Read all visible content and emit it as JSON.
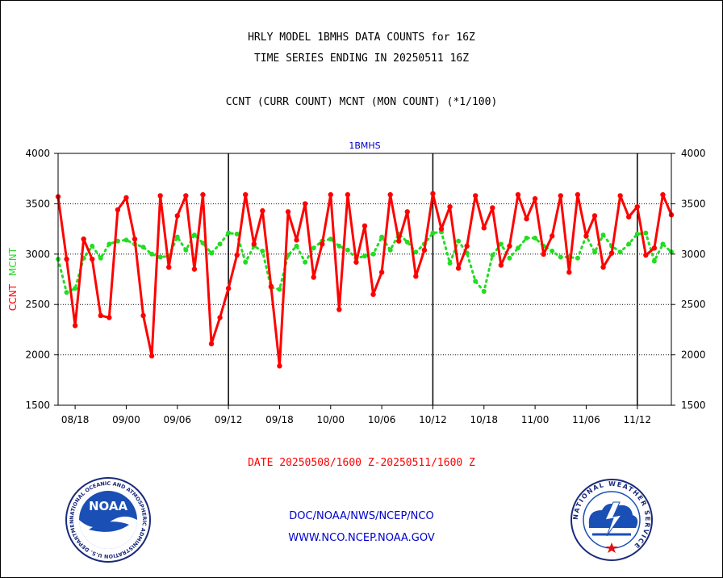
{
  "header": {
    "title_line1": "HRLY MODEL 1BMHS DATA COUNTS for 16Z",
    "title_line2": "TIME SERIES ENDING IN 20250511 16Z",
    "subtitle": "CCNT (CURR COUNT) MCNT (MON COUNT) (*1/100)"
  },
  "footer": {
    "date_range": "DATE 20250508/1600 Z-20250511/1600 Z",
    "org": "DOC/NOAA/NWS/NCEP/NCO",
    "url": "WWW.NCO.NCEP.NOAA.GOV"
  },
  "logos": {
    "left_name": "NOAA",
    "left_ring": "NATIONAL OCEANIC AND ATMOSPHERIC ADMINISTRATION  U.S. DEPARTMENT OF COMMERCE",
    "right_ring": "NATIONAL WEATHER SERVICE"
  },
  "colors": {
    "ccnt": "#ff0000",
    "mcnt": "#22dd22",
    "title_panel": "#0000cc",
    "ylabel_ccnt": "#ff0000",
    "ylabel_mcnt": "#22dd22"
  },
  "chart_data": {
    "type": "line",
    "panel_title": "1BMHS",
    "ylabel_parts": [
      "CCNT",
      "MCNT"
    ],
    "ylim": [
      1500,
      4000
    ],
    "yticks": [
      1500,
      2000,
      2500,
      3000,
      3500,
      4000
    ],
    "ytick_labels": [
      "1500",
      "2000",
      "2500",
      "3000",
      "3500",
      "4000"
    ],
    "grid": "horizontal dotted",
    "xtick_labels": [
      "08/18",
      "09/00",
      "09/06",
      "09/12",
      "09/18",
      "10/00",
      "10/06",
      "10/12",
      "10/18",
      "11/00",
      "11/06",
      "11/12"
    ],
    "xtick_index": [
      2,
      8,
      14,
      20,
      26,
      32,
      38,
      44,
      50,
      56,
      62,
      68
    ],
    "day_boundaries_index": [
      20,
      44,
      68
    ],
    "n_points": 73,
    "series": [
      {
        "name": "CCNT",
        "color": "#ff0000",
        "values": [
          3570,
          2950,
          2290,
          3150,
          2950,
          2390,
          2370,
          3440,
          3560,
          3150,
          2390,
          1990,
          3580,
          2870,
          3380,
          3580,
          2850,
          3590,
          2110,
          2370,
          2660,
          2990,
          3590,
          3100,
          3430,
          2680,
          1890,
          3420,
          3140,
          3500,
          2770,
          3100,
          3590,
          2450,
          3590,
          2920,
          3280,
          2600,
          2820,
          3590,
          3130,
          3420,
          2780,
          3040,
          3600,
          3250,
          3470,
          2860,
          3080,
          3580,
          3260,
          3460,
          2890,
          3080,
          3590,
          3350,
          3550,
          3000,
          3180,
          3580,
          2820,
          3590,
          3180,
          3380,
          2870,
          3010,
          3580,
          3370,
          3470,
          2990,
          3060,
          3590,
          3390
        ]
      },
      {
        "name": "MCNT",
        "color": "#22dd22",
        "values": [
          2950,
          2620,
          2660,
          2960,
          3080,
          2960,
          3100,
          3130,
          3140,
          3100,
          3070,
          3000,
          2970,
          2980,
          3170,
          3040,
          3190,
          3110,
          3010,
          3100,
          3210,
          3200,
          2920,
          3080,
          3030,
          2670,
          2650,
          2990,
          3080,
          2920,
          3060,
          3130,
          3150,
          3080,
          3040,
          2960,
          2980,
          3000,
          3170,
          3040,
          3200,
          3120,
          3020,
          3100,
          3210,
          3220,
          2910,
          3130,
          3010,
          2730,
          2630,
          2990,
          3100,
          2960,
          3060,
          3160,
          3160,
          3080,
          3030,
          2970,
          2970,
          2960,
          3180,
          3020,
          3190,
          3080,
          3020,
          3100,
          3200,
          3210,
          2930,
          3100,
          3020
        ]
      }
    ]
  }
}
